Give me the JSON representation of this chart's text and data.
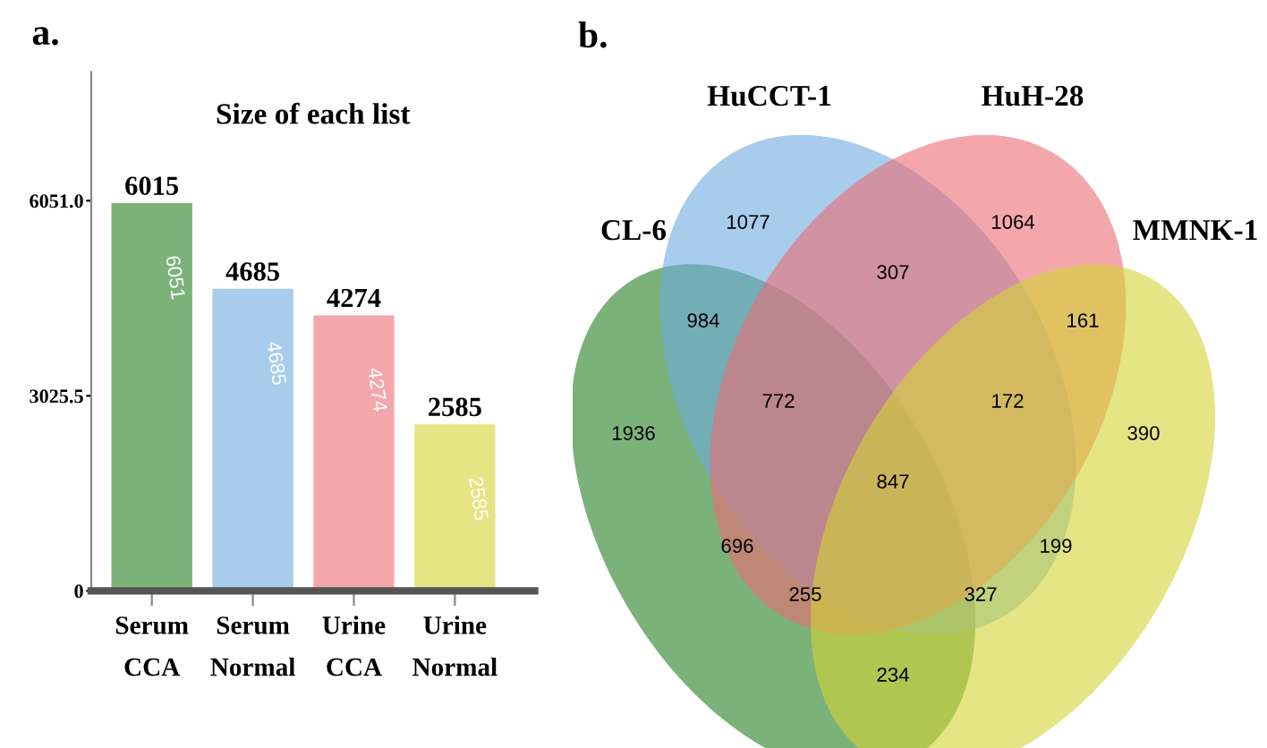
{
  "chart_data": [
    {
      "type": "bar",
      "title": "Size of each list",
      "categories": [
        "Serum\nCCA",
        "Serum\nNormal",
        "Urine\nCCA",
        "Urine\nNormal"
      ],
      "values": [
        6015,
        4685,
        4274,
        2585
      ],
      "colors": [
        "#7ab27a",
        "#a8cceb",
        "#f4a7ab",
        "#e5e585"
      ],
      "data_labels": true,
      "ylim": [
        0,
        8050
      ],
      "yticks": [
        0,
        {
          "value": 3025.5,
          "label": "3025.5"
        },
        {
          "value": 6051,
          "label": "6051.0"
        }
      ],
      "grid": false,
      "annotations": [
        "a.",
        "6051",
        "4685",
        "4274",
        "2585"
      ]
    },
    {
      "type": "other",
      "data_labels": true,
      "annotations": [
        "b.",
        "CL-6",
        "HuCCT-1",
        "HuH-28",
        "MMNK-1",
        "1077",
        "1064",
        "307",
        "984",
        "161",
        "772",
        "172",
        "1936",
        "390",
        "847",
        "696",
        "199",
        "255",
        "327",
        "234"
      ]
    }
  ]
}
